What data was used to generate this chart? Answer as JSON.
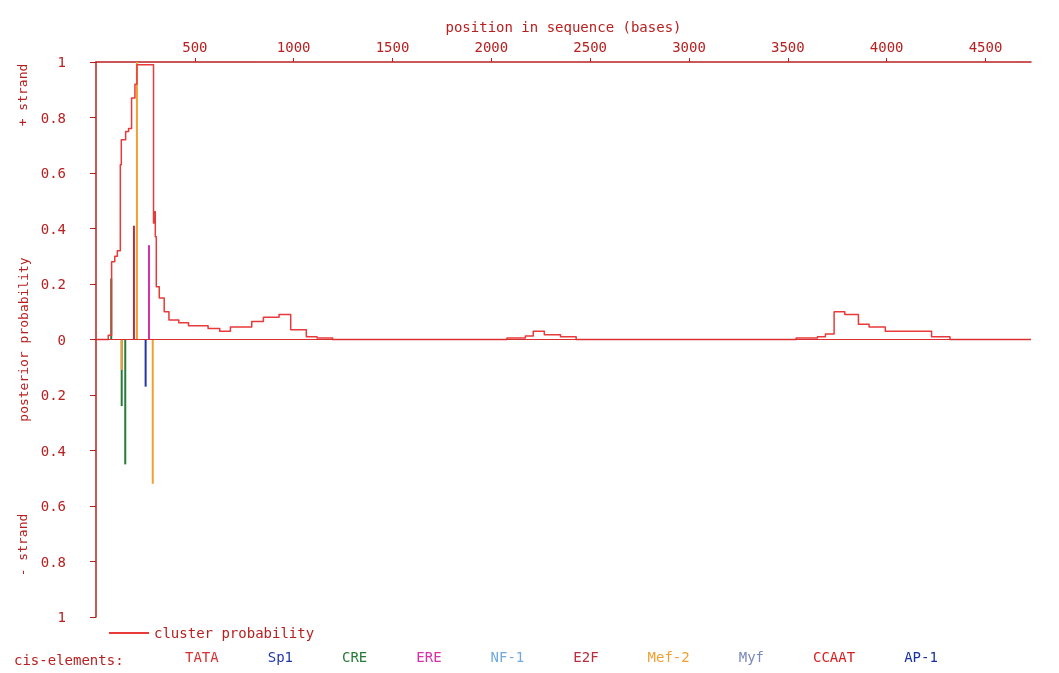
{
  "chart_data": {
    "type": "step",
    "xlabel": "position in sequence (bases)",
    "ylabel": "posterior probability",
    "legend_title": "cis-elements:",
    "annotations": [
      "+ strand",
      "- strand"
    ],
    "xlim": [
      0,
      4730
    ],
    "xticks": [
      500,
      1000,
      1500,
      2000,
      2500,
      3000,
      3500,
      4000,
      4500
    ],
    "ylim": [
      -1,
      1
    ],
    "yticks": [
      {
        "value": -1,
        "label": "1"
      },
      {
        "value": -0.8,
        "label": "0.8"
      },
      {
        "value": -0.6,
        "label": "0.6"
      },
      {
        "value": -0.4,
        "label": "0.4"
      },
      {
        "value": -0.2,
        "label": "0.2"
      },
      0,
      0.2,
      0.4,
      0.6,
      0.8,
      1
    ],
    "ref_lines": [
      {
        "axis": "y",
        "value": 0,
        "color": "#d83030"
      }
    ],
    "legend": "bottom",
    "grid": false,
    "series": [
      {
        "name": "cluster probability",
        "color": "#e83a3a",
        "x": [
          0,
          62,
          79,
          95,
          108,
          123,
          128,
          150,
          165,
          180,
          197,
          207,
          291,
          295,
          300,
          305,
          320,
          345,
          369,
          419,
          468,
          567,
          626,
          680,
          788,
          847,
          926,
          985,
          1064,
          1118,
          1197,
          2079,
          2172,
          2212,
          2268,
          2350,
          2429,
          3542,
          3650,
          3690,
          3734,
          3788,
          3857,
          3911,
          3993,
          4227,
          4320,
          4730
        ],
        "values": [
          0,
          0.015,
          0.28,
          0.3,
          0.32,
          0.63,
          0.72,
          0.75,
          0.76,
          0.87,
          0.92,
          0.99,
          0.42,
          0.46,
          0.37,
          0.19,
          0.15,
          0.1,
          0.07,
          0.06,
          0.05,
          0.04,
          0.03,
          0.045,
          0.065,
          0.08,
          0.09,
          0.035,
          0.01,
          0.005,
          0,
          0.005,
          0.013,
          0.03,
          0.017,
          0.01,
          0,
          0.005,
          0.01,
          0.02,
          0.1,
          0.09,
          0.055,
          0.045,
          0.03,
          0.01,
          0,
          0
        ]
      },
      {
        "name": "TATA",
        "type": "bar",
        "color": "#d83030"
      },
      {
        "name": "Sp1",
        "type": "bar",
        "color": "#2038a8",
        "x": [
          251
        ],
        "values": [
          -0.17
        ]
      },
      {
        "name": "CRE",
        "type": "bar",
        "color": "#287a38",
        "x": [
          77,
          130,
          148
        ],
        "values": [
          0.22,
          -0.24,
          -0.45
        ]
      },
      {
        "name": "ERE",
        "type": "bar",
        "color": "#d830a8",
        "x": [
          268
        ],
        "values": [
          0.34
        ]
      },
      {
        "name": "NF-1",
        "type": "bar",
        "color": "#70a8e0"
      },
      {
        "name": "E2F",
        "type": "bar",
        "color": "#b83040",
        "x": [
          192
        ],
        "values": [
          0.41
        ]
      },
      {
        "name": "Mef-2",
        "type": "bar",
        "color": "#f0a030",
        "x": [
          130,
          207,
          287
        ],
        "values": [
          -0.11,
          1,
          -0.52
        ]
      },
      {
        "name": "Myf",
        "type": "bar",
        "color": "#7888b8"
      },
      {
        "name": "CCAAT",
        "type": "bar",
        "color": "#d82020"
      },
      {
        "name": "AP-1",
        "type": "bar",
        "color": "#1830a0"
      }
    ]
  }
}
